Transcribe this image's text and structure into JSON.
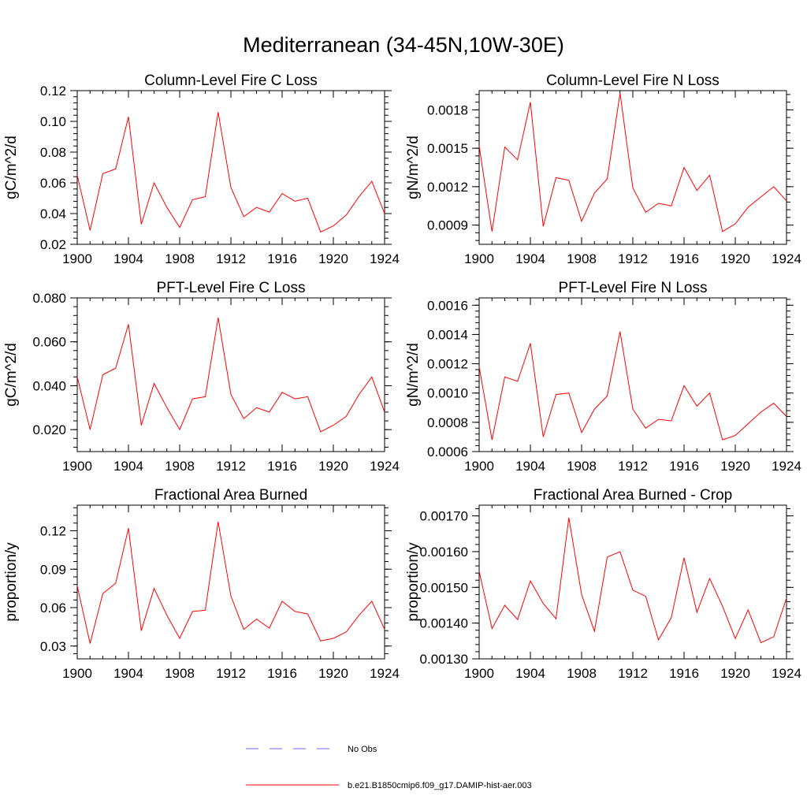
{
  "figure": {
    "title": "Mediterranean (34-45N,10W-30E)"
  },
  "legend": {
    "items": [
      {
        "label": "No Obs",
        "color": "#6b6bff",
        "style": "dashed"
      },
      {
        "label": "b.e21.B1850cmip6.f09_g17.DAMIP-hist-aer.003",
        "color": "#ff0000",
        "style": "solid"
      }
    ]
  },
  "chart_data": [
    {
      "type": "line",
      "title": "Column-Level Fire C Loss",
      "ylabel": "gC/m^2/d",
      "xlim": [
        1900,
        1924
      ],
      "ylim": [
        0.02,
        0.12
      ],
      "xticks": [
        1900,
        1904,
        1908,
        1912,
        1916,
        1920,
        1924
      ],
      "xtick_labels": [
        "1900",
        "1904",
        "1908",
        "1912",
        "1916",
        "1920",
        "1924"
      ],
      "yticks": [
        0.02,
        0.04,
        0.06,
        0.08,
        0.1,
        0.12
      ],
      "ytick_labels": [
        "0.02",
        "0.04",
        "0.06",
        "0.08",
        "0.10",
        "0.12"
      ],
      "x": [
        1900,
        1901,
        1902,
        1903,
        1904,
        1905,
        1906,
        1907,
        1908,
        1909,
        1910,
        1911,
        1912,
        1913,
        1914,
        1915,
        1916,
        1917,
        1918,
        1919,
        1920,
        1921,
        1922,
        1923,
        1924
      ],
      "series": [
        {
          "name": "b.e21.B1850cmip6.f09_g17.DAMIP-hist-aer.003",
          "color": "#ff0000",
          "values": [
            0.065,
            0.029,
            0.066,
            0.069,
            0.103,
            0.033,
            0.06,
            0.044,
            0.031,
            0.049,
            0.051,
            0.106,
            0.057,
            0.038,
            0.044,
            0.041,
            0.053,
            0.048,
            0.05,
            0.028,
            0.032,
            0.039,
            0.051,
            0.061,
            0.04
          ]
        }
      ]
    },
    {
      "type": "line",
      "title": "Column-Level Fire N Loss",
      "ylabel": "gN/m^2/d",
      "xlim": [
        1900,
        1924
      ],
      "ylim": [
        0.00075,
        0.00195
      ],
      "xticks": [
        1900,
        1904,
        1908,
        1912,
        1916,
        1920,
        1924
      ],
      "xtick_labels": [
        "1900",
        "1904",
        "1908",
        "1912",
        "1916",
        "1920",
        "1924"
      ],
      "yticks": [
        0.0009,
        0.0012,
        0.0015,
        0.0018
      ],
      "ytick_labels": [
        "0.0009",
        "0.0012",
        "0.0015",
        "0.0018"
      ],
      "x": [
        1900,
        1901,
        1902,
        1903,
        1904,
        1905,
        1906,
        1907,
        1908,
        1909,
        1910,
        1911,
        1912,
        1913,
        1914,
        1915,
        1916,
        1917,
        1918,
        1919,
        1920,
        1921,
        1922,
        1923,
        1924
      ],
      "series": [
        {
          "name": "b.e21.B1850cmip6.f09_g17.DAMIP-hist-aer.003",
          "color": "#ff0000",
          "values": [
            0.00152,
            0.00085,
            0.00151,
            0.00141,
            0.00186,
            0.00089,
            0.00127,
            0.00125,
            0.00093,
            0.00115,
            0.00126,
            0.00193,
            0.00119,
            0.001,
            0.00107,
            0.00105,
            0.00135,
            0.00117,
            0.00129,
            0.00085,
            0.00091,
            0.00104,
            0.00112,
            0.0012,
            0.00109
          ]
        }
      ]
    },
    {
      "type": "line",
      "title": "PFT-Level Fire C Loss",
      "ylabel": "gC/m^2/d",
      "xlim": [
        1900,
        1924
      ],
      "ylim": [
        0.01,
        0.08
      ],
      "xticks": [
        1900,
        1904,
        1908,
        1912,
        1916,
        1920,
        1924
      ],
      "xtick_labels": [
        "1900",
        "1904",
        "1908",
        "1912",
        "1916",
        "1920",
        "1924"
      ],
      "yticks": [
        0.02,
        0.04,
        0.06,
        0.08
      ],
      "ytick_labels": [
        "0.020",
        "0.040",
        "0.060",
        "0.080"
      ],
      "x": [
        1900,
        1901,
        1902,
        1903,
        1904,
        1905,
        1906,
        1907,
        1908,
        1909,
        1910,
        1911,
        1912,
        1913,
        1914,
        1915,
        1916,
        1917,
        1918,
        1919,
        1920,
        1921,
        1922,
        1923,
        1924
      ],
      "series": [
        {
          "name": "b.e21.B1850cmip6.f09_g17.DAMIP-hist-aer.003",
          "color": "#ff0000",
          "values": [
            0.044,
            0.02,
            0.045,
            0.048,
            0.068,
            0.022,
            0.041,
            0.03,
            0.02,
            0.034,
            0.035,
            0.071,
            0.036,
            0.025,
            0.03,
            0.028,
            0.037,
            0.034,
            0.035,
            0.019,
            0.022,
            0.026,
            0.036,
            0.044,
            0.028
          ]
        }
      ]
    },
    {
      "type": "line",
      "title": "PFT-Level Fire N Loss",
      "ylabel": "gN/m^2/d",
      "xlim": [
        1900,
        1924
      ],
      "ylim": [
        0.0006,
        0.00165
      ],
      "xticks": [
        1900,
        1904,
        1908,
        1912,
        1916,
        1920,
        1924
      ],
      "xtick_labels": [
        "1900",
        "1904",
        "1908",
        "1912",
        "1916",
        "1920",
        "1924"
      ],
      "yticks": [
        0.0006,
        0.0008,
        0.001,
        0.0012,
        0.0014,
        0.0016
      ],
      "ytick_labels": [
        "0.0006",
        "0.0008",
        "0.0010",
        "0.0012",
        "0.0014",
        "0.0016"
      ],
      "x": [
        1900,
        1901,
        1902,
        1903,
        1904,
        1905,
        1906,
        1907,
        1908,
        1909,
        1910,
        1911,
        1912,
        1913,
        1914,
        1915,
        1916,
        1917,
        1918,
        1919,
        1920,
        1921,
        1922,
        1923,
        1924
      ],
      "series": [
        {
          "name": "b.e21.B1850cmip6.f09_g17.DAMIP-hist-aer.003",
          "color": "#ff0000",
          "values": [
            0.00118,
            0.00068,
            0.00111,
            0.00108,
            0.00134,
            0.0007,
            0.00099,
            0.001,
            0.00073,
            0.00089,
            0.00098,
            0.00142,
            0.00089,
            0.00076,
            0.00082,
            0.00081,
            0.00105,
            0.00091,
            0.001,
            0.00068,
            0.00071,
            0.00079,
            0.00087,
            0.00093,
            0.00084
          ]
        }
      ]
    },
    {
      "type": "line",
      "title": "Fractional Area Burned",
      "ylabel": "proportion/y",
      "xlim": [
        1900,
        1924
      ],
      "ylim": [
        0.02,
        0.14
      ],
      "xticks": [
        1900,
        1904,
        1908,
        1912,
        1916,
        1920,
        1924
      ],
      "xtick_labels": [
        "1900",
        "1904",
        "1908",
        "1912",
        "1916",
        "1920",
        "1924"
      ],
      "yticks": [
        0.03,
        0.06,
        0.09,
        0.12
      ],
      "ytick_labels": [
        "0.03",
        "0.06",
        "0.09",
        "0.12"
      ],
      "x": [
        1900,
        1901,
        1902,
        1903,
        1904,
        1905,
        1906,
        1907,
        1908,
        1909,
        1910,
        1911,
        1912,
        1913,
        1914,
        1915,
        1916,
        1917,
        1918,
        1919,
        1920,
        1921,
        1922,
        1923,
        1924
      ],
      "series": [
        {
          "name": "b.e21.B1850cmip6.f09_g17.DAMIP-hist-aer.003",
          "color": "#ff0000",
          "values": [
            0.077,
            0.032,
            0.071,
            0.079,
            0.122,
            0.042,
            0.075,
            0.054,
            0.036,
            0.057,
            0.058,
            0.127,
            0.069,
            0.043,
            0.051,
            0.044,
            0.065,
            0.057,
            0.055,
            0.034,
            0.036,
            0.041,
            0.054,
            0.065,
            0.043
          ]
        }
      ]
    },
    {
      "type": "line",
      "title": "Fractional Area Burned - Crop",
      "ylabel": "proportion/y",
      "xlim": [
        1900,
        1924
      ],
      "ylim": [
        0.0013,
        0.00173
      ],
      "xticks": [
        1900,
        1904,
        1908,
        1912,
        1916,
        1920,
        1924
      ],
      "xtick_labels": [
        "1900",
        "1904",
        "1908",
        "1912",
        "1916",
        "1920",
        "1924"
      ],
      "yticks": [
        0.0013,
        0.0014,
        0.0015,
        0.0016,
        0.0017
      ],
      "ytick_labels": [
        "0.00130",
        "0.00140",
        "0.00150",
        "0.00160",
        "0.00170"
      ],
      "x": [
        1900,
        1901,
        1902,
        1903,
        1904,
        1905,
        1906,
        1907,
        1908,
        1909,
        1910,
        1911,
        1912,
        1913,
        1914,
        1915,
        1916,
        1917,
        1918,
        1919,
        1920,
        1921,
        1922,
        1923,
        1924
      ],
      "series": [
        {
          "name": "b.e21.B1850cmip6.f09_g17.DAMIP-hist-aer.003",
          "color": "#ff0000",
          "values": [
            0.001545,
            0.001385,
            0.00145,
            0.00141,
            0.001518,
            0.001455,
            0.001412,
            0.001695,
            0.00148,
            0.001377,
            0.001585,
            0.0016,
            0.001492,
            0.001475,
            0.001353,
            0.001415,
            0.001583,
            0.00143,
            0.001525,
            0.001447,
            0.001357,
            0.001437,
            0.001345,
            0.001362,
            0.00147
          ]
        }
      ]
    }
  ]
}
